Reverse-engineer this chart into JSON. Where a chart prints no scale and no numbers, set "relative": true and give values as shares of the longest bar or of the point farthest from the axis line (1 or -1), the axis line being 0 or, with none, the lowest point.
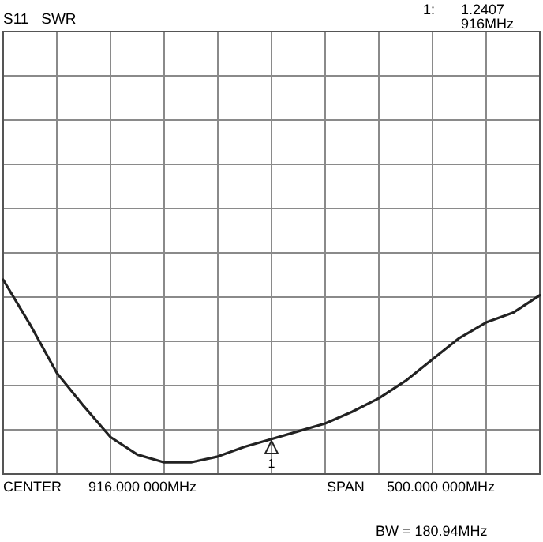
{
  "chart_data": {
    "type": "line",
    "title": "S11   SWR",
    "relative": true,
    "categories": [
      null,
      null,
      null,
      null,
      null,
      null,
      null,
      null,
      null,
      null,
      null,
      null,
      null,
      null,
      null,
      null,
      null,
      null,
      null,
      null,
      null
    ],
    "series": [
      {
        "color": "#222222",
        "values": [
          1.0,
          0.77,
          0.52,
          0.35,
          0.19,
          0.1,
          0.06,
          0.06,
          0.09,
          0.14,
          0.18,
          0.22,
          0.26,
          0.32,
          0.39,
          0.48,
          0.59,
          0.7,
          0.78,
          0.83,
          0.92
        ]
      }
    ],
    "grid": true,
    "marker": "none",
    "line_style": "solid",
    "annotations": [
      "1:",
      "1.2407",
      "916MHz",
      "CENTER",
      "916.000 000MHz",
      "SPAN",
      "500.000 000MHz",
      "BW = 180.94MHz",
      "1"
    ]
  }
}
